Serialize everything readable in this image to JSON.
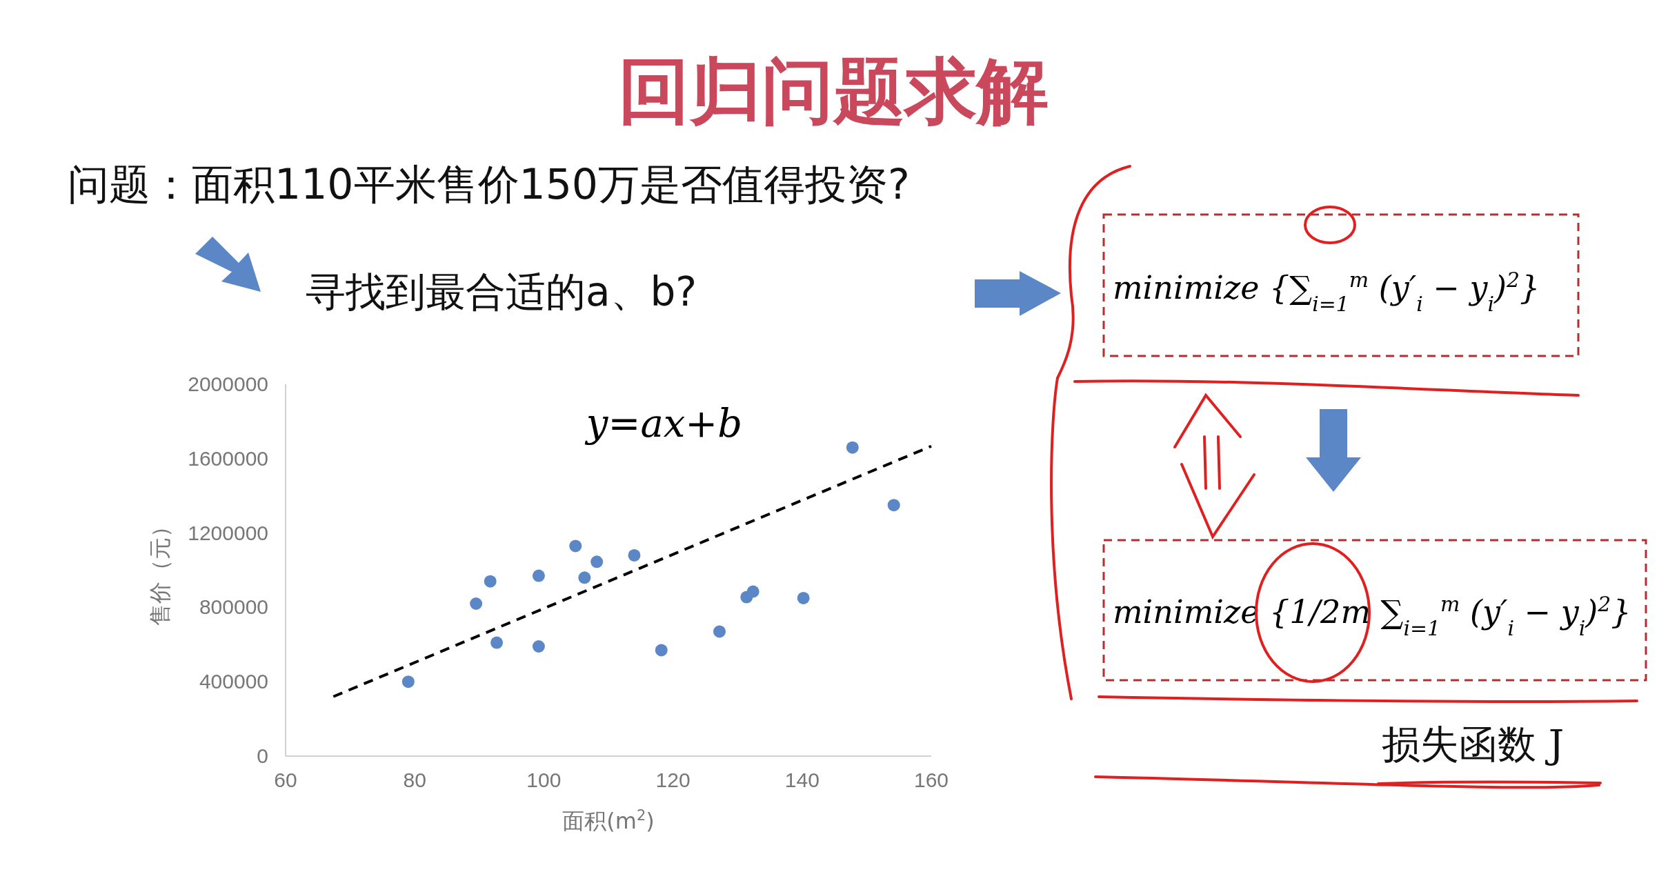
{
  "chart_data": {
    "type": "scatter",
    "title": "回归问题求解",
    "xlabel": "面积(m$^{2}$)",
    "ylabel": "售价（元）",
    "xlim": [
      60,
      160
    ],
    "xticks": [
      60,
      80,
      100,
      120,
      140,
      160
    ],
    "ylim": [
      0,
      2000000
    ],
    "yticks": [
      0,
      400000,
      800000,
      1200000,
      1600000,
      2000000
    ],
    "grid": false,
    "series": [
      {
        "color": "#5b87c7",
        "marker": "circle",
        "x": [
          79,
          89.5,
          91.7,
          92.7,
          99.2,
          99.2,
          104.9,
          106.3,
          108.2,
          114,
          118.2,
          127.2,
          131.4,
          132.4,
          140.2,
          147.8,
          154.2
        ],
        "values": [
          400000,
          820000,
          940000,
          610000,
          970000,
          590000,
          1130000,
          960000,
          1045000,
          1080000,
          570000,
          670000,
          855000,
          885000,
          850000,
          1660000,
          1350000
        ]
      },
      {
        "type": "line",
        "color": "#000000",
        "line_style": "dashed",
        "x": [
          67.4,
          160
        ],
        "values": [
          320000,
          1667000
        ]
      }
    ],
    "annotations": [
      "问题：面积110平米售价150万是否值得投资?",
      "寻找到最合适的a、b?",
      "y=ax+b",
      "minimize {∑$_{i=1}$$^{m}$ (y′$_{i}$ − y$_{i}$)$^{2}$}",
      "minimize {1/2m ∑$_{i=1}$$^{m}$ (y′$_{i}$ − y$_{i}$)$^{2}$}",
      "损失函数 J"
    ]
  }
}
